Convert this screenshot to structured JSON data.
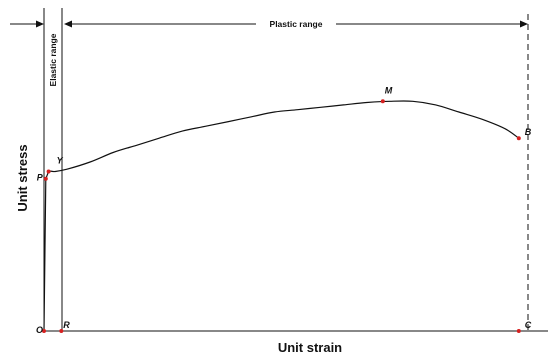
{
  "chart_data": {
    "type": "line",
    "xlabel": "Unit strain",
    "ylabel": "Unit stress",
    "series": [
      {
        "x": [
          0,
          0.08,
          0.2,
          0.48,
          1.0,
          2.0,
          3.0,
          4.0,
          5.0,
          6.0,
          7.0,
          8.0,
          9.0,
          10.0,
          11.0,
          12.0,
          13.0,
          14.0,
          15.0,
          16.0,
          17.0,
          18.0,
          19.0,
          20.0,
          20.6
        ],
        "y": [
          0,
          0.64,
          0.67,
          0.67,
          0.68,
          0.71,
          0.75,
          0.78,
          0.81,
          0.84,
          0.86,
          0.88,
          0.9,
          0.92,
          0.93,
          0.94,
          0.95,
          0.96,
          0.965,
          0.965,
          0.95,
          0.92,
          0.89,
          0.85,
          0.81
        ]
      }
    ],
    "points": [
      {
        "label": "O",
        "x": 0,
        "y": 0
      },
      {
        "label": "P",
        "x": 0.08,
        "y": 0.64
      },
      {
        "label": "Y",
        "x": 0.2,
        "y": 0.67
      },
      {
        "label": "M",
        "x": 14.7,
        "y": 0.965
      },
      {
        "label": "B",
        "x": 20.6,
        "y": 0.81
      },
      {
        "label": "R",
        "x": 0.75,
        "y": 0
      },
      {
        "label": "C",
        "x": 20.6,
        "y": 0
      }
    ],
    "annotations": {
      "elastic_range": "Elastic range",
      "plastic_range": "Plastic range"
    },
    "xlim": [
      0,
      21
    ],
    "ylim": [
      0,
      1
    ],
    "grid": false,
    "legend": "none",
    "colors": {
      "curve": "#111111",
      "point": "#d62020"
    }
  }
}
